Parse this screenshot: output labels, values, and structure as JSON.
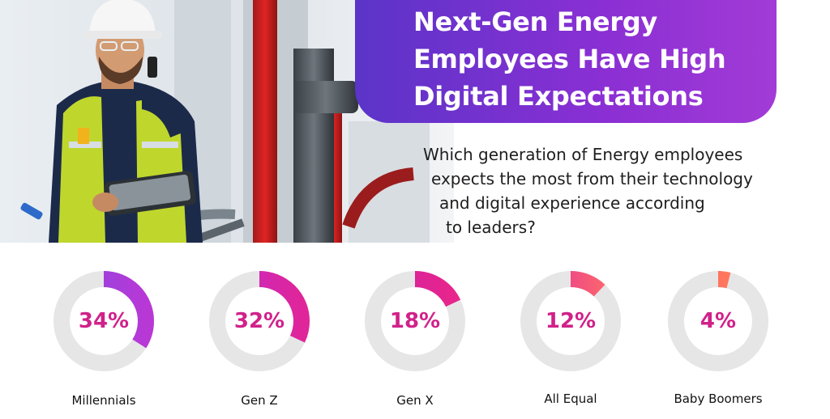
{
  "header": {
    "title_lines": [
      "Next-Gen Energy",
      "Employees Have High",
      "Digital Expectations"
    ]
  },
  "question_lines": [
    "Which generation of Energy employees",
    "expects the most from their technology",
    "and digital experience according",
    "to leaders?"
  ],
  "colors": {
    "title_gradient_start": "#5b34c8",
    "title_gradient_end": "#a23bd6",
    "percent_text": "#d1218a",
    "track": "#e6e6e6"
  },
  "chart_data": {
    "type": "pie",
    "categories": [
      "Millennials",
      "Gen Z",
      "Gen X",
      "All Equal",
      "Baby Boomers"
    ],
    "values": [
      34,
      32,
      18,
      12,
      4
    ],
    "labels": [
      "34%",
      "32%",
      "18%",
      "12%",
      "4%"
    ],
    "segment_colors": [
      [
        "#8b46e0",
        "#b838d6"
      ],
      [
        "#c32bc8",
        "#e0259a"
      ],
      [
        "#d21fa6",
        "#e8268a"
      ],
      [
        "#e0309a",
        "#ff6a6a"
      ],
      [
        "#ff5d6a",
        "#ff8a55"
      ]
    ]
  }
}
